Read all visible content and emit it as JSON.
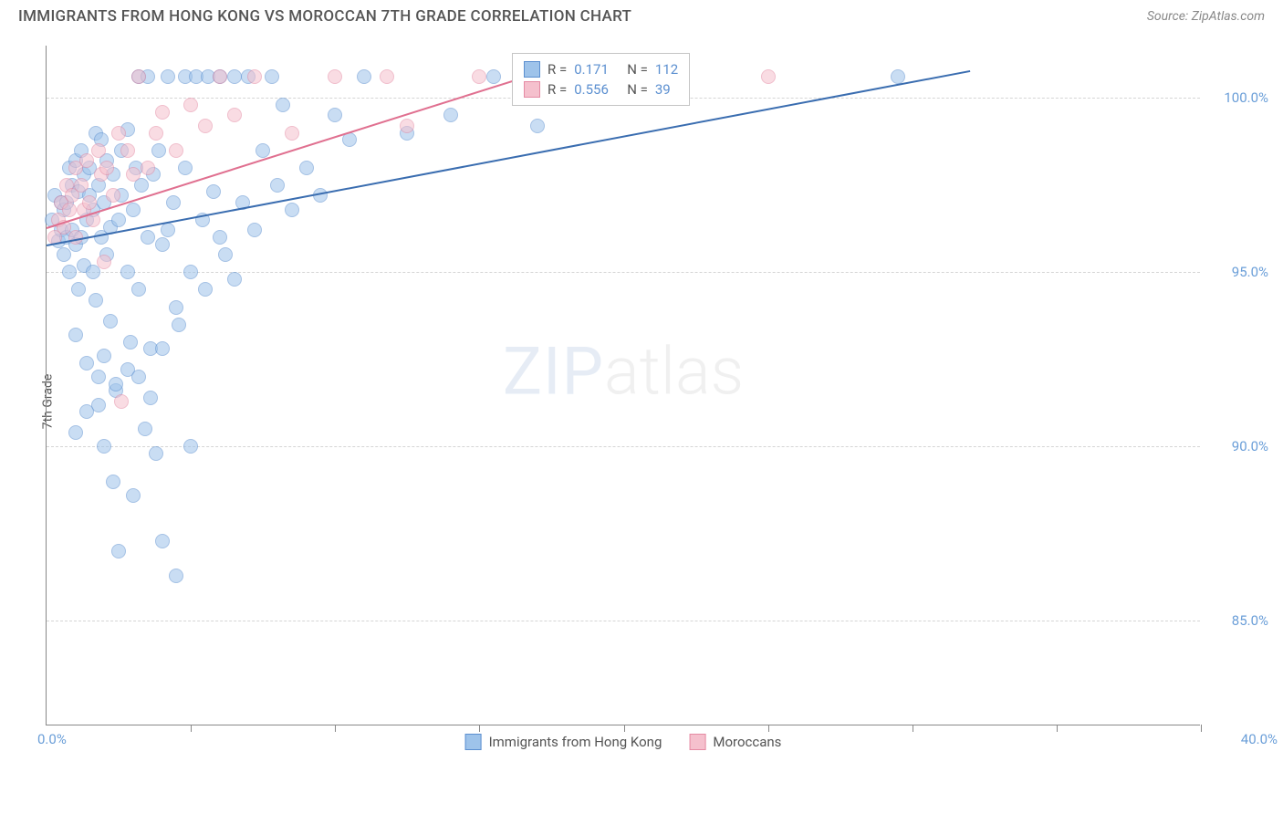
{
  "title": "IMMIGRANTS FROM HONG KONG VS MOROCCAN 7TH GRADE CORRELATION CHART",
  "source": "Source: ZipAtlas.com",
  "ylabel": "7th Grade",
  "watermark_zip": "ZIP",
  "watermark_atlas": "atlas",
  "chart": {
    "type": "scatter",
    "xlim": [
      0,
      40
    ],
    "ylim": [
      82,
      101.5
    ],
    "x_tick_labels": {
      "left": "0.0%",
      "right": "40.0%"
    },
    "x_ticks": [
      0,
      5,
      10,
      15,
      20,
      25,
      30,
      35,
      40
    ],
    "y_gridlines": [
      85,
      90,
      95,
      100
    ],
    "y_tick_labels": [
      "85.0%",
      "90.0%",
      "95.0%",
      "100.0%"
    ],
    "background_color": "#ffffff",
    "grid_color": "#d5d5d5",
    "axis_label_color": "#6a9ed8",
    "point_radius": 8,
    "point_opacity": 0.55,
    "series": [
      {
        "name": "Immigrants from Hong Kong",
        "color_fill": "#9ec3ea",
        "color_stroke": "#5b8fd0",
        "R": "0.171",
        "N": "112",
        "trend": {
          "x1": 0,
          "y1": 95.8,
          "x2": 32,
          "y2": 100.8,
          "color": "#3a6db0"
        },
        "points": [
          [
            0.2,
            96.5
          ],
          [
            0.3,
            97.2
          ],
          [
            0.4,
            95.9
          ],
          [
            0.5,
            96.2
          ],
          [
            0.5,
            97.0
          ],
          [
            0.6,
            95.5
          ],
          [
            0.6,
            96.8
          ],
          [
            0.7,
            97.0
          ],
          [
            0.7,
            96.0
          ],
          [
            0.8,
            98.0
          ],
          [
            0.8,
            95.0
          ],
          [
            0.9,
            97.5
          ],
          [
            0.9,
            96.2
          ],
          [
            1.0,
            95.8
          ],
          [
            1.0,
            98.2
          ],
          [
            1.0,
            93.2
          ],
          [
            1.1,
            97.3
          ],
          [
            1.1,
            94.5
          ],
          [
            1.2,
            96.0
          ],
          [
            1.2,
            98.5
          ],
          [
            1.3,
            97.8
          ],
          [
            1.3,
            95.2
          ],
          [
            1.4,
            96.5
          ],
          [
            1.4,
            92.4
          ],
          [
            1.5,
            98.0
          ],
          [
            1.5,
            97.2
          ],
          [
            1.6,
            96.8
          ],
          [
            1.6,
            95.0
          ],
          [
            1.7,
            99.0
          ],
          [
            1.7,
            94.2
          ],
          [
            1.8,
            97.5
          ],
          [
            1.8,
            91.2
          ],
          [
            1.9,
            96.0
          ],
          [
            1.9,
            98.8
          ],
          [
            2.0,
            90.0
          ],
          [
            2.0,
            97.0
          ],
          [
            2.1,
            95.5
          ],
          [
            2.1,
            98.2
          ],
          [
            2.2,
            96.3
          ],
          [
            2.2,
            93.6
          ],
          [
            2.3,
            97.8
          ],
          [
            2.3,
            89.0
          ],
          [
            2.4,
            91.6
          ],
          [
            2.5,
            96.5
          ],
          [
            2.5,
            87.0
          ],
          [
            2.6,
            97.2
          ],
          [
            2.6,
            98.5
          ],
          [
            2.8,
            95.0
          ],
          [
            2.8,
            99.1
          ],
          [
            2.9,
            93.0
          ],
          [
            3.0,
            96.8
          ],
          [
            3.0,
            88.6
          ],
          [
            3.1,
            98.0
          ],
          [
            3.2,
            94.5
          ],
          [
            3.2,
            100.6
          ],
          [
            3.3,
            97.5
          ],
          [
            3.4,
            90.5
          ],
          [
            3.5,
            96.0
          ],
          [
            3.5,
            100.6
          ],
          [
            3.6,
            92.8
          ],
          [
            3.7,
            97.8
          ],
          [
            3.8,
            89.8
          ],
          [
            3.9,
            98.5
          ],
          [
            4.0,
            95.8
          ],
          [
            4.0,
            87.3
          ],
          [
            4.2,
            96.2
          ],
          [
            4.2,
            100.6
          ],
          [
            4.4,
            97.0
          ],
          [
            4.5,
            86.3
          ],
          [
            4.6,
            93.5
          ],
          [
            4.8,
            98.0
          ],
          [
            4.8,
            100.6
          ],
          [
            5.0,
            95.0
          ],
          [
            5.0,
            90.0
          ],
          [
            5.2,
            100.6
          ],
          [
            5.4,
            96.5
          ],
          [
            5.5,
            94.5
          ],
          [
            5.6,
            100.6
          ],
          [
            5.8,
            97.3
          ],
          [
            6.0,
            96.0
          ],
          [
            6.0,
            100.6
          ],
          [
            6.2,
            95.5
          ],
          [
            6.5,
            100.6
          ],
          [
            6.5,
            94.8
          ],
          [
            6.8,
            97.0
          ],
          [
            7.0,
            100.6
          ],
          [
            7.2,
            96.2
          ],
          [
            7.5,
            98.5
          ],
          [
            7.8,
            100.6
          ],
          [
            8.0,
            97.5
          ],
          [
            8.2,
            99.8
          ],
          [
            8.5,
            96.8
          ],
          [
            9.0,
            98.0
          ],
          [
            9.5,
            97.2
          ],
          [
            10.0,
            99.5
          ],
          [
            10.5,
            98.8
          ],
          [
            11.0,
            100.6
          ],
          [
            12.5,
            99.0
          ],
          [
            14.0,
            99.5
          ],
          [
            15.5,
            100.6
          ],
          [
            17.0,
            99.2
          ],
          [
            29.5,
            100.6
          ],
          [
            1.0,
            90.4
          ],
          [
            1.4,
            91.0
          ],
          [
            1.8,
            92.0
          ],
          [
            2.0,
            92.6
          ],
          [
            2.4,
            91.8
          ],
          [
            2.8,
            92.2
          ],
          [
            3.2,
            92.0
          ],
          [
            3.6,
            91.4
          ],
          [
            4.0,
            92.8
          ],
          [
            4.5,
            94.0
          ]
        ]
      },
      {
        "name": "Moroccans",
        "color_fill": "#f5c0cd",
        "color_stroke": "#e58aa3",
        "R": "0.556",
        "N": "39",
        "trend": {
          "x1": 0,
          "y1": 96.3,
          "x2": 18,
          "y2": 101.0,
          "color": "#e07090"
        },
        "points": [
          [
            0.3,
            96.0
          ],
          [
            0.4,
            96.5
          ],
          [
            0.5,
            97.0
          ],
          [
            0.6,
            96.3
          ],
          [
            0.7,
            97.5
          ],
          [
            0.8,
            96.8
          ],
          [
            0.9,
            97.2
          ],
          [
            1.0,
            96.0
          ],
          [
            1.0,
            98.0
          ],
          [
            1.2,
            97.5
          ],
          [
            1.3,
            96.8
          ],
          [
            1.4,
            98.2
          ],
          [
            1.5,
            97.0
          ],
          [
            1.6,
            96.5
          ],
          [
            1.8,
            98.5
          ],
          [
            1.9,
            97.8
          ],
          [
            2.0,
            95.3
          ],
          [
            2.1,
            98.0
          ],
          [
            2.3,
            97.2
          ],
          [
            2.5,
            99.0
          ],
          [
            2.6,
            91.3
          ],
          [
            2.8,
            98.5
          ],
          [
            3.0,
            97.8
          ],
          [
            3.2,
            100.6
          ],
          [
            3.5,
            98.0
          ],
          [
            3.8,
            99.0
          ],
          [
            4.0,
            99.6
          ],
          [
            4.5,
            98.5
          ],
          [
            5.0,
            99.8
          ],
          [
            5.5,
            99.2
          ],
          [
            6.0,
            100.6
          ],
          [
            6.5,
            99.5
          ],
          [
            7.2,
            100.6
          ],
          [
            8.5,
            99.0
          ],
          [
            10.0,
            100.6
          ],
          [
            11.8,
            100.6
          ],
          [
            12.5,
            99.2
          ],
          [
            15.0,
            100.6
          ],
          [
            25.0,
            100.6
          ]
        ]
      }
    ],
    "legend_box_labels": {
      "r_prefix": "R  =",
      "n_prefix": "N  ="
    }
  }
}
